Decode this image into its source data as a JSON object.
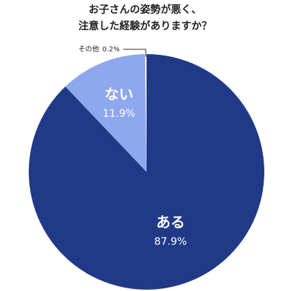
{
  "chart_data": {
    "type": "pie",
    "title": [
      "お子さんの姿勢が悪く、",
      "注意した経験がありますか？"
    ],
    "categories": [
      "ある",
      "ない",
      "その他"
    ],
    "values": [
      87.9,
      11.9,
      0.2
    ],
    "value_labels": [
      "87.9%",
      "11.9%",
      "0.2%"
    ],
    "colors": [
      "#213a87",
      "#8ea7ee",
      "#ffffff"
    ]
  }
}
